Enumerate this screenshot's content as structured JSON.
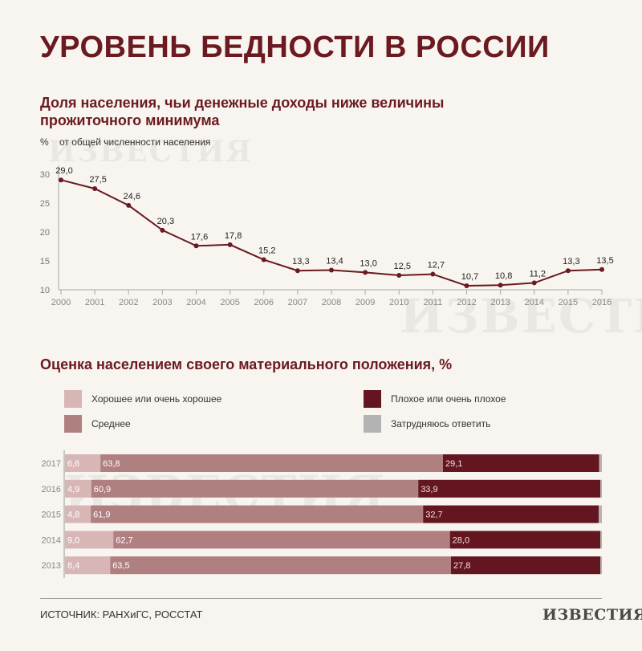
{
  "title": "УРОВЕНЬ БЕДНОСТИ В РОССИИ",
  "source": "ИСТОЧНИК: РАНХиГС, РОССТАТ",
  "logo": "ИЗВЕСТИЯ",
  "chart_data": [
    {
      "type": "line",
      "title": "Доля населения, чьи денежные доходы ниже величины прожиточного минимума",
      "unit_symbol": "%",
      "unit_label": "от общей численности населения",
      "ylim": [
        10,
        30
      ],
      "yticks": [
        10,
        15,
        20,
        25,
        30
      ],
      "x": [
        "2000",
        "2001",
        "2002",
        "2003",
        "2004",
        "2005",
        "2006",
        "2007",
        "2008",
        "2009",
        "2010",
        "2011",
        "2012",
        "2013",
        "2014",
        "2015",
        "2016"
      ],
      "values": [
        29.0,
        27.5,
        24.6,
        20.3,
        17.6,
        17.8,
        15.2,
        13.3,
        13.4,
        13.0,
        12.5,
        12.7,
        10.7,
        10.8,
        11.2,
        13.3,
        13.5
      ],
      "labels": [
        "29,0",
        "27,5",
        "24,6",
        "20,3",
        "17,6",
        "17,8",
        "15,2",
        "13,3",
        "13,4",
        "13,0",
        "12,5",
        "12,7",
        "10,7",
        "10,8",
        "11,2",
        "13,3",
        "13,5"
      ],
      "color": "#6a1a20"
    },
    {
      "type": "bar",
      "orientation": "horizontal",
      "stacked": true,
      "title": "Оценка населением своего материального положения, %",
      "categories": [
        "2017",
        "2016",
        "2015",
        "2014",
        "2013"
      ],
      "series": [
        {
          "name": "Хорошее или очень хорошее",
          "color": "#d8b6b6",
          "values": [
            6.6,
            4.9,
            4.8,
            9.0,
            8.4
          ],
          "labels": [
            "6,6",
            "4,9",
            "4,8",
            "9,0",
            "8,4"
          ]
        },
        {
          "name": "Среднее",
          "color": "#b07f80",
          "values": [
            63.8,
            60.9,
            61.9,
            62.7,
            63.5
          ],
          "labels": [
            "63,8",
            "60,9",
            "61,9",
            "62,7",
            "63,5"
          ]
        },
        {
          "name": "Плохое или очень плохое",
          "color": "#631620",
          "values": [
            29.1,
            33.9,
            32.7,
            28.0,
            27.8
          ],
          "labels": [
            "29,1",
            "33,9",
            "32,7",
            "28,0",
            "27,8"
          ]
        },
        {
          "name": "Затрудняюсь ответить",
          "color": "#b3b3b3",
          "values": [
            0.5,
            0.3,
            0.6,
            0.3,
            0.3
          ],
          "labels": [
            "",
            "",
            "",
            "",
            ""
          ]
        }
      ]
    }
  ]
}
